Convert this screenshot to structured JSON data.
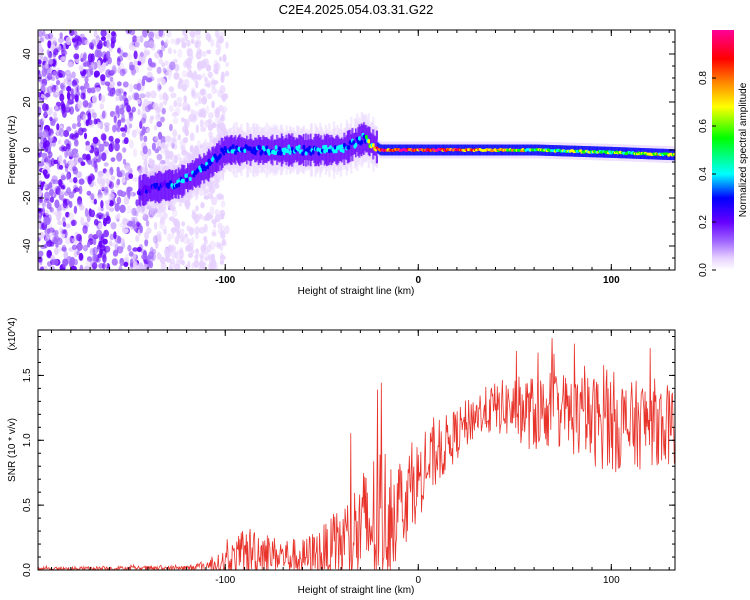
{
  "figure": {
    "title": "C2E4.2025.054.03.31.G22"
  },
  "chart_data": [
    {
      "type": "heatmap",
      "xlabel": "Height of straight line (km)",
      "ylabel": "Frequency (Hz)",
      "xlim": [
        -197,
        133
      ],
      "ylim": [
        -50,
        50
      ],
      "x_ticks": [
        -100,
        0,
        100
      ],
      "y_ticks": [
        -40,
        -20,
        0,
        20,
        40
      ],
      "colorbar": {
        "label": "Normalized spectral amplitude",
        "range": [
          0,
          1
        ],
        "ticks": [
          0.0,
          0.2,
          0.4,
          0.6,
          0.8
        ],
        "tick_labels": [
          "0.0",
          "0.2",
          "0.4",
          "0.6",
          "0.8"
        ],
        "colormap": [
          "#ffffff",
          "#e6d0ff",
          "#a066ff",
          "#6600ff",
          "#0000ff",
          "#00ffff",
          "#00ff00",
          "#ffff00",
          "#ff8800",
          "#ff0000",
          "#ff0099"
        ]
      },
      "ridge": {
        "description_points_x": [
          -145,
          -125,
          -110,
          -100,
          -80,
          -60,
          -40,
          -28,
          -20,
          0,
          20,
          60,
          100,
          133
        ],
        "center_freq_hz": [
          -17,
          -14,
          -7,
          0,
          0,
          0,
          0,
          5,
          0,
          0,
          0,
          0,
          -1,
          -2
        ],
        "peak_amplitude": [
          0.35,
          0.45,
          0.45,
          0.5,
          0.45,
          0.5,
          0.5,
          0.45,
          0.95,
          0.95,
          0.95,
          0.65,
          0.65,
          0.7
        ]
      },
      "noise_region_x": [
        -197,
        -105
      ]
    },
    {
      "type": "line",
      "xlabel": "Height of straight line (km)",
      "ylabel": "SNR (10 * v/v)",
      "y_multiplier": "(x10^4)",
      "xlim": [
        -197,
        133
      ],
      "ylim": [
        0,
        18500
      ],
      "x_ticks": [
        -100,
        0,
        100
      ],
      "y_ticks": [
        0,
        5000,
        10000,
        15000
      ],
      "y_tick_labels": [
        "0.0",
        "0.5",
        "1.0",
        "1.5"
      ],
      "series": [
        {
          "color": "#e8332b",
          "envelope_x": [
            -197,
            -120,
            -105,
            -95,
            -85,
            -75,
            -60,
            -45,
            -30,
            -20,
            -15,
            -10,
            -5,
            0,
            10,
            20,
            30,
            40,
            50,
            60,
            70,
            80,
            90,
            100,
            110,
            120,
            133
          ],
          "baseline": [
            100,
            150,
            400,
            800,
            1500,
            1200,
            900,
            1500,
            3000,
            4000,
            4500,
            5000,
            6000,
            7000,
            9000,
            10500,
            12000,
            12500,
            12500,
            12000,
            12500,
            12000,
            11500,
            11500,
            11000,
            11500,
            11000
          ],
          "amplitude": [
            120,
            200,
            600,
            1600,
            2200,
            1400,
            1500,
            2500,
            4500,
            6000,
            5000,
            4000,
            3500,
            3000,
            2500,
            2000,
            1800,
            2000,
            2500,
            3000,
            3000,
            3200,
            3500,
            4000,
            3500,
            3500,
            3000
          ]
        }
      ]
    }
  ]
}
